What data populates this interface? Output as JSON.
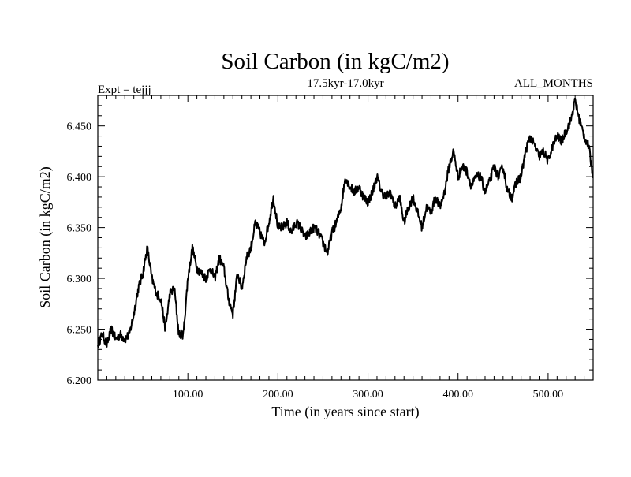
{
  "chart_data": {
    "type": "line",
    "title": "Soil Carbon (in kgC/m2)",
    "subtitle": "17.5kyr-17.0kyr",
    "left_label": "Expt = tejjj",
    "right_label": "ALL_MONTHS",
    "xlabel": "Time (in years since start)",
    "ylabel": "Soil Carbon (in kgC/m2)",
    "xlim": [
      0,
      550
    ],
    "ylim": [
      6.2,
      6.48
    ],
    "x_ticks": [
      100,
      200,
      300,
      400,
      500
    ],
    "x_tick_labels": [
      "100.00",
      "200.00",
      "300.00",
      "400.00",
      "500.00"
    ],
    "y_ticks": [
      6.2,
      6.25,
      6.3,
      6.35,
      6.4,
      6.45
    ],
    "y_tick_labels": [
      "6.200",
      "6.250",
      "6.300",
      "6.350",
      "6.400",
      "6.450"
    ],
    "series": [
      {
        "name": "Soil Carbon",
        "x": [
          0,
          5,
          10,
          15,
          20,
          25,
          30,
          35,
          40,
          45,
          50,
          55,
          60,
          65,
          70,
          75,
          80,
          85,
          90,
          95,
          100,
          105,
          110,
          115,
          120,
          125,
          130,
          135,
          140,
          145,
          150,
          155,
          160,
          165,
          170,
          175,
          180,
          185,
          190,
          195,
          200,
          205,
          210,
          215,
          220,
          225,
          230,
          235,
          240,
          245,
          250,
          255,
          260,
          265,
          270,
          275,
          280,
          285,
          290,
          295,
          300,
          305,
          310,
          315,
          320,
          325,
          330,
          335,
          340,
          345,
          350,
          355,
          360,
          365,
          370,
          375,
          380,
          385,
          390,
          395,
          400,
          405,
          410,
          415,
          420,
          425,
          430,
          435,
          440,
          445,
          450,
          455,
          460,
          465,
          470,
          475,
          480,
          485,
          490,
          495,
          500,
          505,
          510,
          515,
          520,
          525,
          530,
          535,
          540,
          545,
          550
        ],
        "y": [
          6.235,
          6.245,
          6.235,
          6.25,
          6.24,
          6.245,
          6.24,
          6.245,
          6.265,
          6.29,
          6.305,
          6.33,
          6.3,
          6.285,
          6.28,
          6.25,
          6.285,
          6.29,
          6.245,
          6.245,
          6.3,
          6.33,
          6.31,
          6.305,
          6.3,
          6.31,
          6.3,
          6.32,
          6.31,
          6.28,
          6.265,
          6.305,
          6.29,
          6.32,
          6.33,
          6.355,
          6.345,
          6.335,
          6.355,
          6.38,
          6.35,
          6.35,
          6.355,
          6.345,
          6.355,
          6.35,
          6.34,
          6.345,
          6.35,
          6.345,
          6.335,
          6.325,
          6.345,
          6.355,
          6.37,
          6.4,
          6.39,
          6.385,
          6.39,
          6.38,
          6.375,
          6.385,
          6.4,
          6.385,
          6.38,
          6.385,
          6.37,
          6.38,
          6.355,
          6.37,
          6.38,
          6.365,
          6.35,
          6.37,
          6.365,
          6.38,
          6.37,
          6.385,
          6.41,
          6.425,
          6.4,
          6.41,
          6.405,
          6.39,
          6.4,
          6.4,
          6.385,
          6.395,
          6.41,
          6.4,
          6.41,
          6.385,
          6.38,
          6.395,
          6.4,
          6.425,
          6.44,
          6.43,
          6.42,
          6.425,
          6.415,
          6.43,
          6.44,
          6.435,
          6.445,
          6.455,
          6.475,
          6.455,
          6.44,
          6.43,
          6.4
        ]
      }
    ]
  }
}
